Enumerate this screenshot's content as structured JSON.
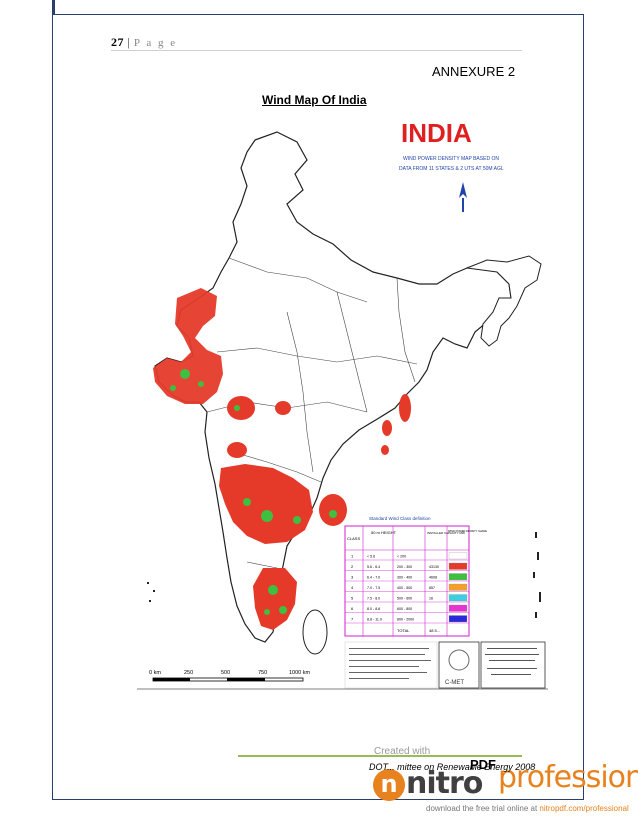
{
  "header": {
    "page_number": "27",
    "separator": "|",
    "page_word": "P a g e"
  },
  "annexure": "ANNEXURE 2",
  "map_title": "Wind Map Of India",
  "map": {
    "country_label": "INDIA",
    "subtitle_lines": [
      "WIND POWER DENSITY MAP BASED ON",
      "DATA FROM 11 STATES & 2 UTS AT 50M AGL"
    ],
    "legend": {
      "heading": "Standard Wind Class definition",
      "columns": [
        "CLASS",
        "50 m HEIGHT",
        "INSTALLED CAPACITY MW",
        "WIND POWER DENSITY SHADE"
      ],
      "rows": [
        {
          "cls": "1",
          "speed": "< 5.6",
          "density": "< 200",
          "mw": "",
          "color": "#ffffff"
        },
        {
          "cls": "2",
          "speed": "5.6 - 6.4",
          "density": "200 - 300",
          "mw": "43130",
          "color": "#e53a2a"
        },
        {
          "cls": "3",
          "speed": "6.4 - 7.0",
          "density": "300 - 400",
          "mw": "4608",
          "color": "#3fbf3f"
        },
        {
          "cls": "4",
          "speed": "7.0 - 7.5",
          "density": "400 - 500",
          "mw": "857",
          "color": "#f2a02a"
        },
        {
          "cls": "5",
          "speed": "7.5 - 8.0",
          "density": "500 - 600",
          "mw": "16",
          "color": "#3ccfe0"
        },
        {
          "cls": "6",
          "speed": "8.0 - 8.8",
          "density": "600 - 800",
          "mw": "",
          "color": "#e833d0"
        },
        {
          "cls": "7",
          "speed": "8.8 - 11.9",
          "density": "800 - 2000",
          "mw": "",
          "color": "#2a2ad8"
        }
      ],
      "total_label": "TOTAL",
      "total_value": "48 5..."
    },
    "scale_labels": [
      "0 km",
      "250",
      "500",
      "750",
      "1000 km"
    ],
    "org_label": "C-MET"
  },
  "footer": {
    "text": "DOT... mittee on Renewable Energy 2008"
  },
  "watermark": {
    "created_with": "Created with",
    "brand": "nitro",
    "pdf_mark": "PDF",
    "edition": "professional",
    "download_text": "download the free trial online at ",
    "download_site": "nitropdf.com/professional"
  },
  "colors": {
    "border": "#2a3f6b",
    "footer_rule": "#9aba59",
    "wind_red": "#e53a2a",
    "wind_green": "#3fbf3f",
    "india_title": "#e02020",
    "nitro_orange": "#e8821e"
  }
}
